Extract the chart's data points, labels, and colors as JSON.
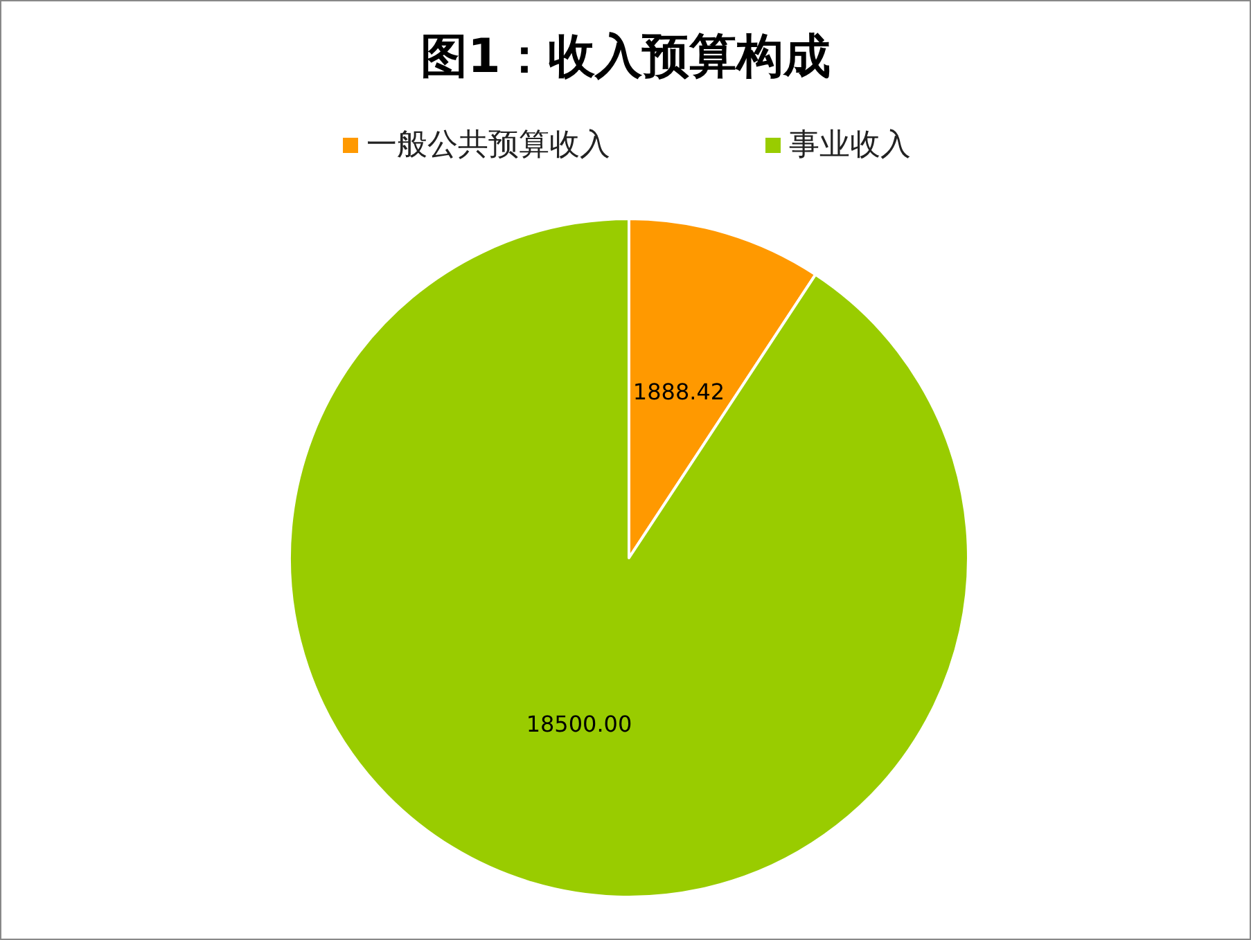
{
  "chart_data": {
    "type": "pie",
    "title": "图1：收入预算构成",
    "categories": [
      "一般公共预算收入",
      "事业收入"
    ],
    "values": [
      1888.42,
      18500
    ],
    "colors": [
      "#ff9900",
      "#99cc00"
    ],
    "value_labels": [
      "1888.42",
      "18500.00"
    ],
    "legend": "top"
  }
}
